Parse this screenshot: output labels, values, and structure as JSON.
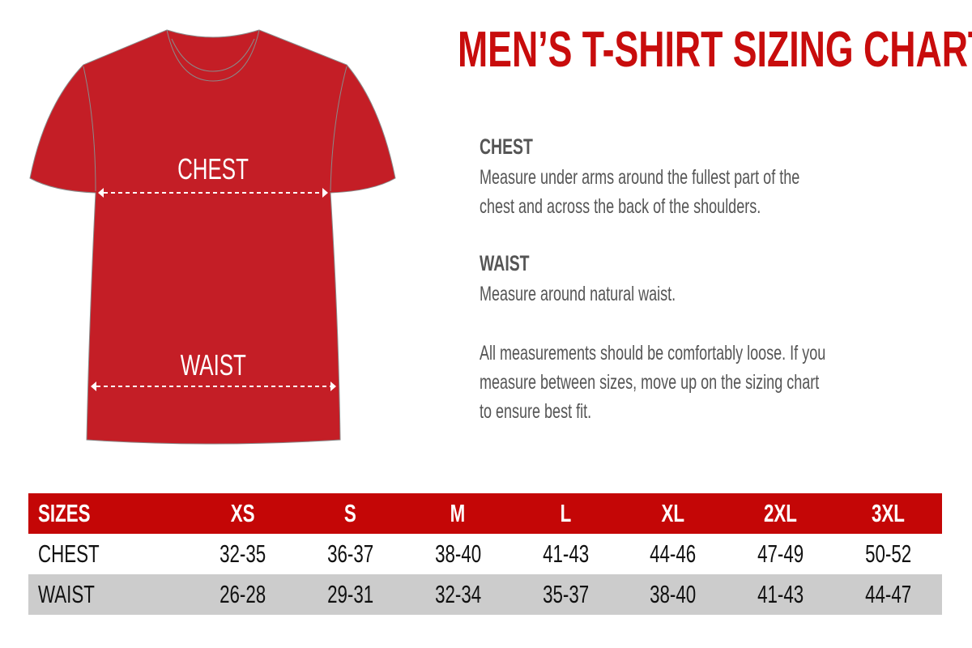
{
  "title": "MEN’S T-SHIRT SIZING CHART",
  "shirt": {
    "chest_label": "CHEST",
    "waist_label": "WAIST",
    "color": "#c41e26"
  },
  "info": {
    "chest_heading": "CHEST",
    "chest_line1": "Measure under arms around the fullest part of the",
    "chest_line2": "chest and across the back of the shoulders.",
    "waist_heading": "WAIST",
    "waist_text": "Measure around natural waist.",
    "note_line1": "All measurements should be comfortably loose. If you",
    "note_line2": "measure between sizes, move up on the sizing chart",
    "note_line3": "to ensure best fit."
  },
  "table": {
    "header": [
      "SIZES",
      "XS",
      "S",
      "M",
      "L",
      "XL",
      "2XL",
      "3XL"
    ],
    "rows": [
      [
        "CHEST",
        "32-35",
        "36-37",
        "38-40",
        "41-43",
        "44-46",
        "47-49",
        "50-52"
      ],
      [
        "WAIST",
        "26-28",
        "29-31",
        "32-34",
        "35-37",
        "38-40",
        "41-43",
        "44-47"
      ]
    ]
  }
}
